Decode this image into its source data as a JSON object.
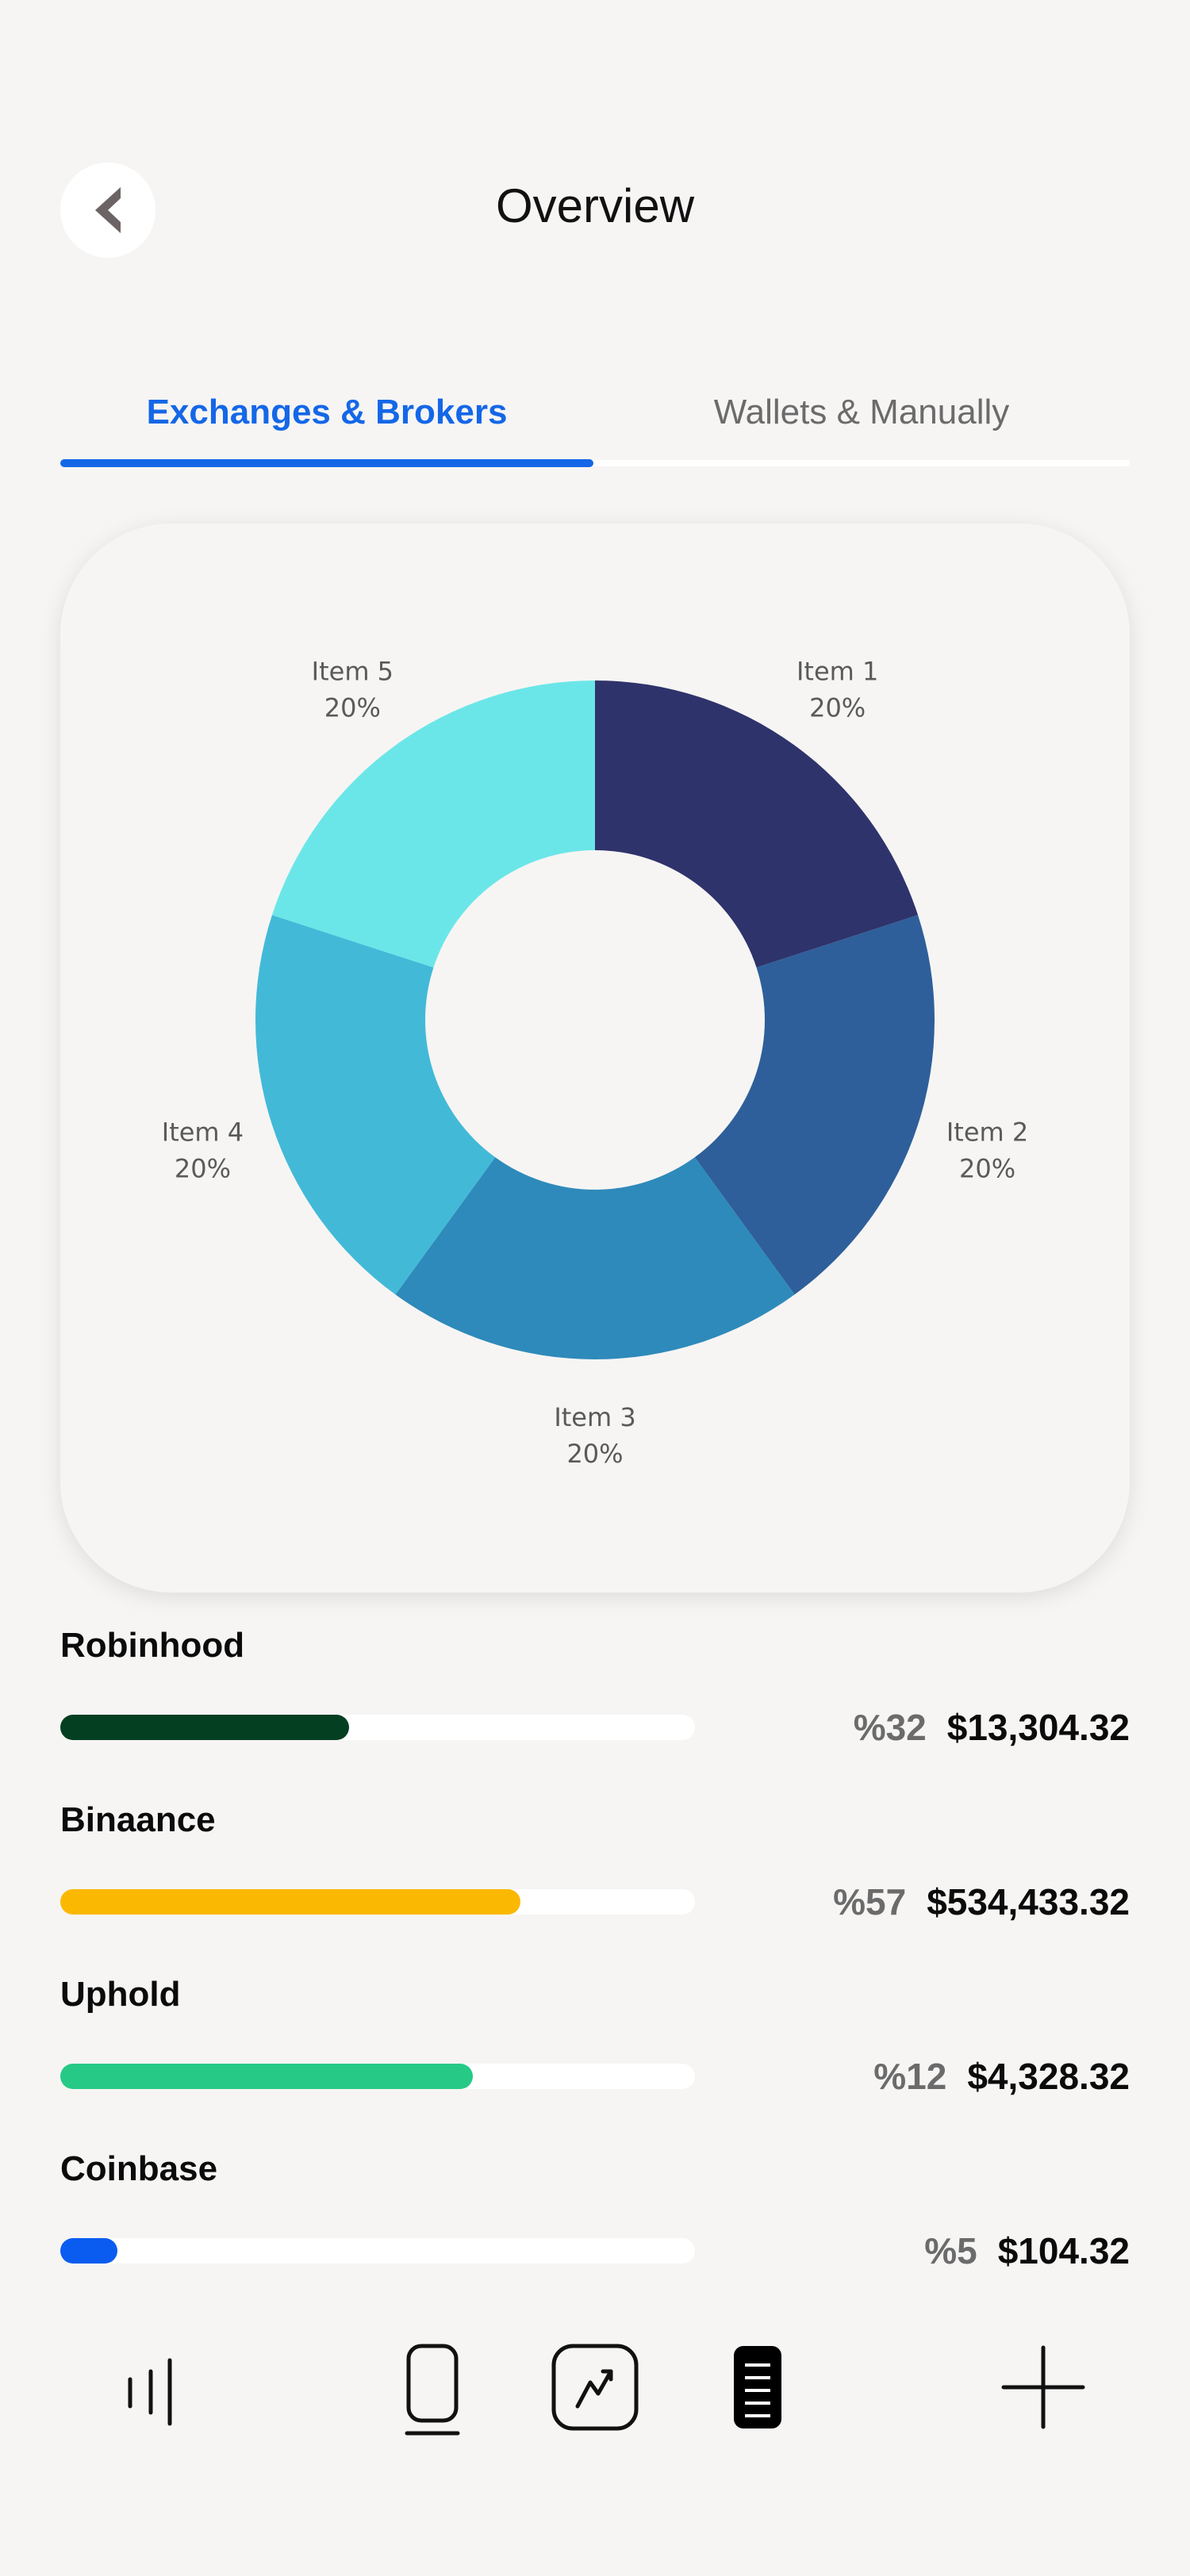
{
  "header": {
    "title": "Overview"
  },
  "tabs": [
    {
      "label": "Exchanges & Brokers",
      "active": true
    },
    {
      "label": "Wallets & Manually",
      "active": false
    }
  ],
  "chart_data": {
    "type": "pie",
    "donut": true,
    "categories": [
      "Item 1",
      "Item 2",
      "Item 3",
      "Item 4",
      "Item 5"
    ],
    "values": [
      20,
      20,
      20,
      20,
      20
    ],
    "value_labels": [
      "20%",
      "20%",
      "20%",
      "20%",
      "20%"
    ],
    "colors": [
      "#2f336b",
      "#2e5f9a",
      "#2e8aba",
      "#43b9d8",
      "#6be6e8"
    ]
  },
  "brokers": [
    {
      "name": "Robinhood",
      "percent": "%32",
      "amount": "$13,304.32",
      "fill": 0.455,
      "color": "#043f22"
    },
    {
      "name": "Binaance",
      "percent": "%57",
      "amount": "$534,433.32",
      "fill": 0.725,
      "color": "#fbb802"
    },
    {
      "name": "Uphold",
      "percent": "%12",
      "amount": "$4,328.32",
      "fill": 0.65,
      "color": "#27c986"
    },
    {
      "name": "Coinbase",
      "percent": "%5",
      "amount": "$104.32",
      "fill": 0.09,
      "color": "#0a5cf0"
    }
  ],
  "nav": {
    "icons": [
      "menu-icon",
      "device-icon",
      "chart-icon",
      "list-icon",
      "plus-icon"
    ]
  }
}
